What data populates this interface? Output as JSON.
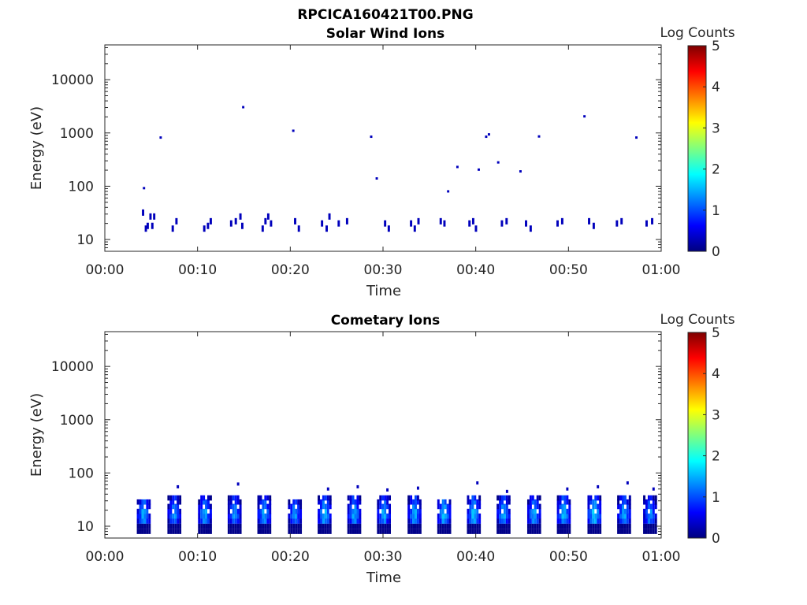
{
  "figure": {
    "filename": "RPCICA160421T00.PNG"
  },
  "colorscale": {
    "stops": [
      "#00007f",
      "#0000ff",
      "#007fff",
      "#00ffff",
      "#7fff7f",
      "#ffff00",
      "#ff7f00",
      "#ff0000",
      "#7f0000"
    ]
  },
  "chart_data": [
    {
      "type": "heatmap",
      "title": "Solar Wind Ions",
      "xlabel": "Time",
      "ylabel": "Energy (eV)",
      "xlim": [
        "00:00",
        "01:00"
      ],
      "ylim": [
        6,
        45000
      ],
      "yscale": "log",
      "x_ticks": [
        "00:00",
        "00:10",
        "00:20",
        "00:30",
        "00:40",
        "00:50",
        "01:00"
      ],
      "y_ticks": [
        10,
        100,
        1000,
        10000
      ],
      "y_tick_labels": [
        "10",
        "100",
        "1000",
        "10000"
      ],
      "colorbar": {
        "label": "Log Counts",
        "range": [
          0,
          5
        ],
        "ticks": [
          "0",
          "1",
          "2",
          "3",
          "4",
          "5"
        ]
      },
      "cells_note": "minute, energy_eV, log_counts",
      "cells": [
        [
          4.0,
          32,
          0.3
        ],
        [
          4.3,
          16,
          0.3
        ],
        [
          4.5,
          18,
          0.3
        ],
        [
          4.8,
          27,
          0.3
        ],
        [
          5.0,
          18,
          0.3
        ],
        [
          5.2,
          27,
          0.3
        ],
        [
          4.1,
          92,
          0.3
        ],
        [
          5.9,
          820,
          0.3
        ],
        [
          7.2,
          16,
          0.3
        ],
        [
          7.6,
          22,
          0.3
        ],
        [
          10.6,
          16,
          0.3
        ],
        [
          11.0,
          18,
          0.3
        ],
        [
          11.3,
          22,
          0.3
        ],
        [
          13.5,
          20,
          0.3
        ],
        [
          14.0,
          22,
          0.3
        ],
        [
          14.5,
          27,
          0.3
        ],
        [
          14.7,
          18,
          0.3
        ],
        [
          14.8,
          3050,
          0.3
        ],
        [
          16.9,
          16,
          0.3
        ],
        [
          17.2,
          22,
          0.3
        ],
        [
          17.5,
          27,
          0.3
        ],
        [
          17.8,
          20,
          0.3
        ],
        [
          20.2,
          1100,
          0.3
        ],
        [
          20.4,
          22,
          0.3
        ],
        [
          20.8,
          16,
          0.3
        ],
        [
          23.3,
          20,
          0.3
        ],
        [
          23.8,
          16,
          0.3
        ],
        [
          24.1,
          27,
          0.3
        ],
        [
          25.1,
          20,
          0.3
        ],
        [
          26.0,
          22,
          0.3
        ],
        [
          28.6,
          850,
          0.3
        ],
        [
          29.2,
          140,
          0.3
        ],
        [
          30.1,
          20,
          0.3
        ],
        [
          30.5,
          16,
          0.3
        ],
        [
          32.9,
          20,
          0.3
        ],
        [
          33.3,
          16,
          0.3
        ],
        [
          33.7,
          22,
          0.3
        ],
        [
          36.1,
          22,
          0.3
        ],
        [
          36.5,
          20,
          0.3
        ],
        [
          36.9,
          80,
          0.3
        ],
        [
          37.9,
          230,
          0.3
        ],
        [
          39.2,
          20,
          0.3
        ],
        [
          39.6,
          22,
          0.3
        ],
        [
          39.9,
          16,
          0.3
        ],
        [
          40.2,
          205,
          0.3
        ],
        [
          41.0,
          850,
          0.3
        ],
        [
          41.3,
          940,
          0.3
        ],
        [
          42.3,
          280,
          0.3
        ],
        [
          42.7,
          20,
          0.3
        ],
        [
          43.2,
          22,
          0.3
        ],
        [
          44.7,
          190,
          0.3
        ],
        [
          45.3,
          20,
          0.3
        ],
        [
          45.8,
          16,
          0.3
        ],
        [
          46.7,
          860,
          0.3
        ],
        [
          48.7,
          20,
          0.3
        ],
        [
          49.2,
          22,
          0.3
        ],
        [
          51.6,
          2050,
          0.3
        ],
        [
          52.1,
          22,
          0.3
        ],
        [
          52.6,
          18,
          0.3
        ],
        [
          55.1,
          20,
          0.3
        ],
        [
          55.6,
          22,
          0.3
        ],
        [
          57.2,
          820,
          0.3
        ],
        [
          58.3,
          20,
          0.3
        ],
        [
          58.9,
          22,
          0.3
        ]
      ]
    },
    {
      "type": "heatmap",
      "title": "Cometary Ions",
      "xlabel": "Time",
      "ylabel": "Energy (eV)",
      "xlim": [
        "00:00",
        "01:00"
      ],
      "ylim": [
        6,
        45000
      ],
      "yscale": "log",
      "x_ticks": [
        "00:00",
        "00:10",
        "00:20",
        "00:30",
        "00:40",
        "00:50",
        "01:00"
      ],
      "y_ticks": [
        10,
        100,
        1000,
        10000
      ],
      "y_tick_labels": [
        "10",
        "100",
        "1000",
        "10000"
      ],
      "colorbar": {
        "label": "Log Counts",
        "range": [
          0,
          5
        ],
        "ticks": [
          "0",
          "1",
          "2",
          "3",
          "4",
          "5"
        ]
      },
      "bursts_note": "minute, peak log_counts, top energy_eV",
      "bursts": [
        [
          4.2,
          1.8,
          32
        ],
        [
          7.5,
          1.7,
          55
        ],
        [
          10.8,
          1.8,
          36
        ],
        [
          14.0,
          1.7,
          62
        ],
        [
          17.2,
          1.8,
          38
        ],
        [
          20.5,
          1.7,
          32
        ],
        [
          23.7,
          1.9,
          50
        ],
        [
          26.9,
          1.8,
          55
        ],
        [
          30.1,
          1.8,
          48
        ],
        [
          33.4,
          1.8,
          52
        ],
        [
          36.6,
          1.9,
          30
        ],
        [
          39.8,
          1.9,
          65
        ],
        [
          43.0,
          1.8,
          45
        ],
        [
          46.3,
          1.8,
          38
        ],
        [
          49.5,
          1.9,
          50
        ],
        [
          52.8,
          2.0,
          55
        ],
        [
          56.0,
          1.8,
          65
        ],
        [
          58.8,
          1.7,
          50
        ]
      ]
    }
  ]
}
